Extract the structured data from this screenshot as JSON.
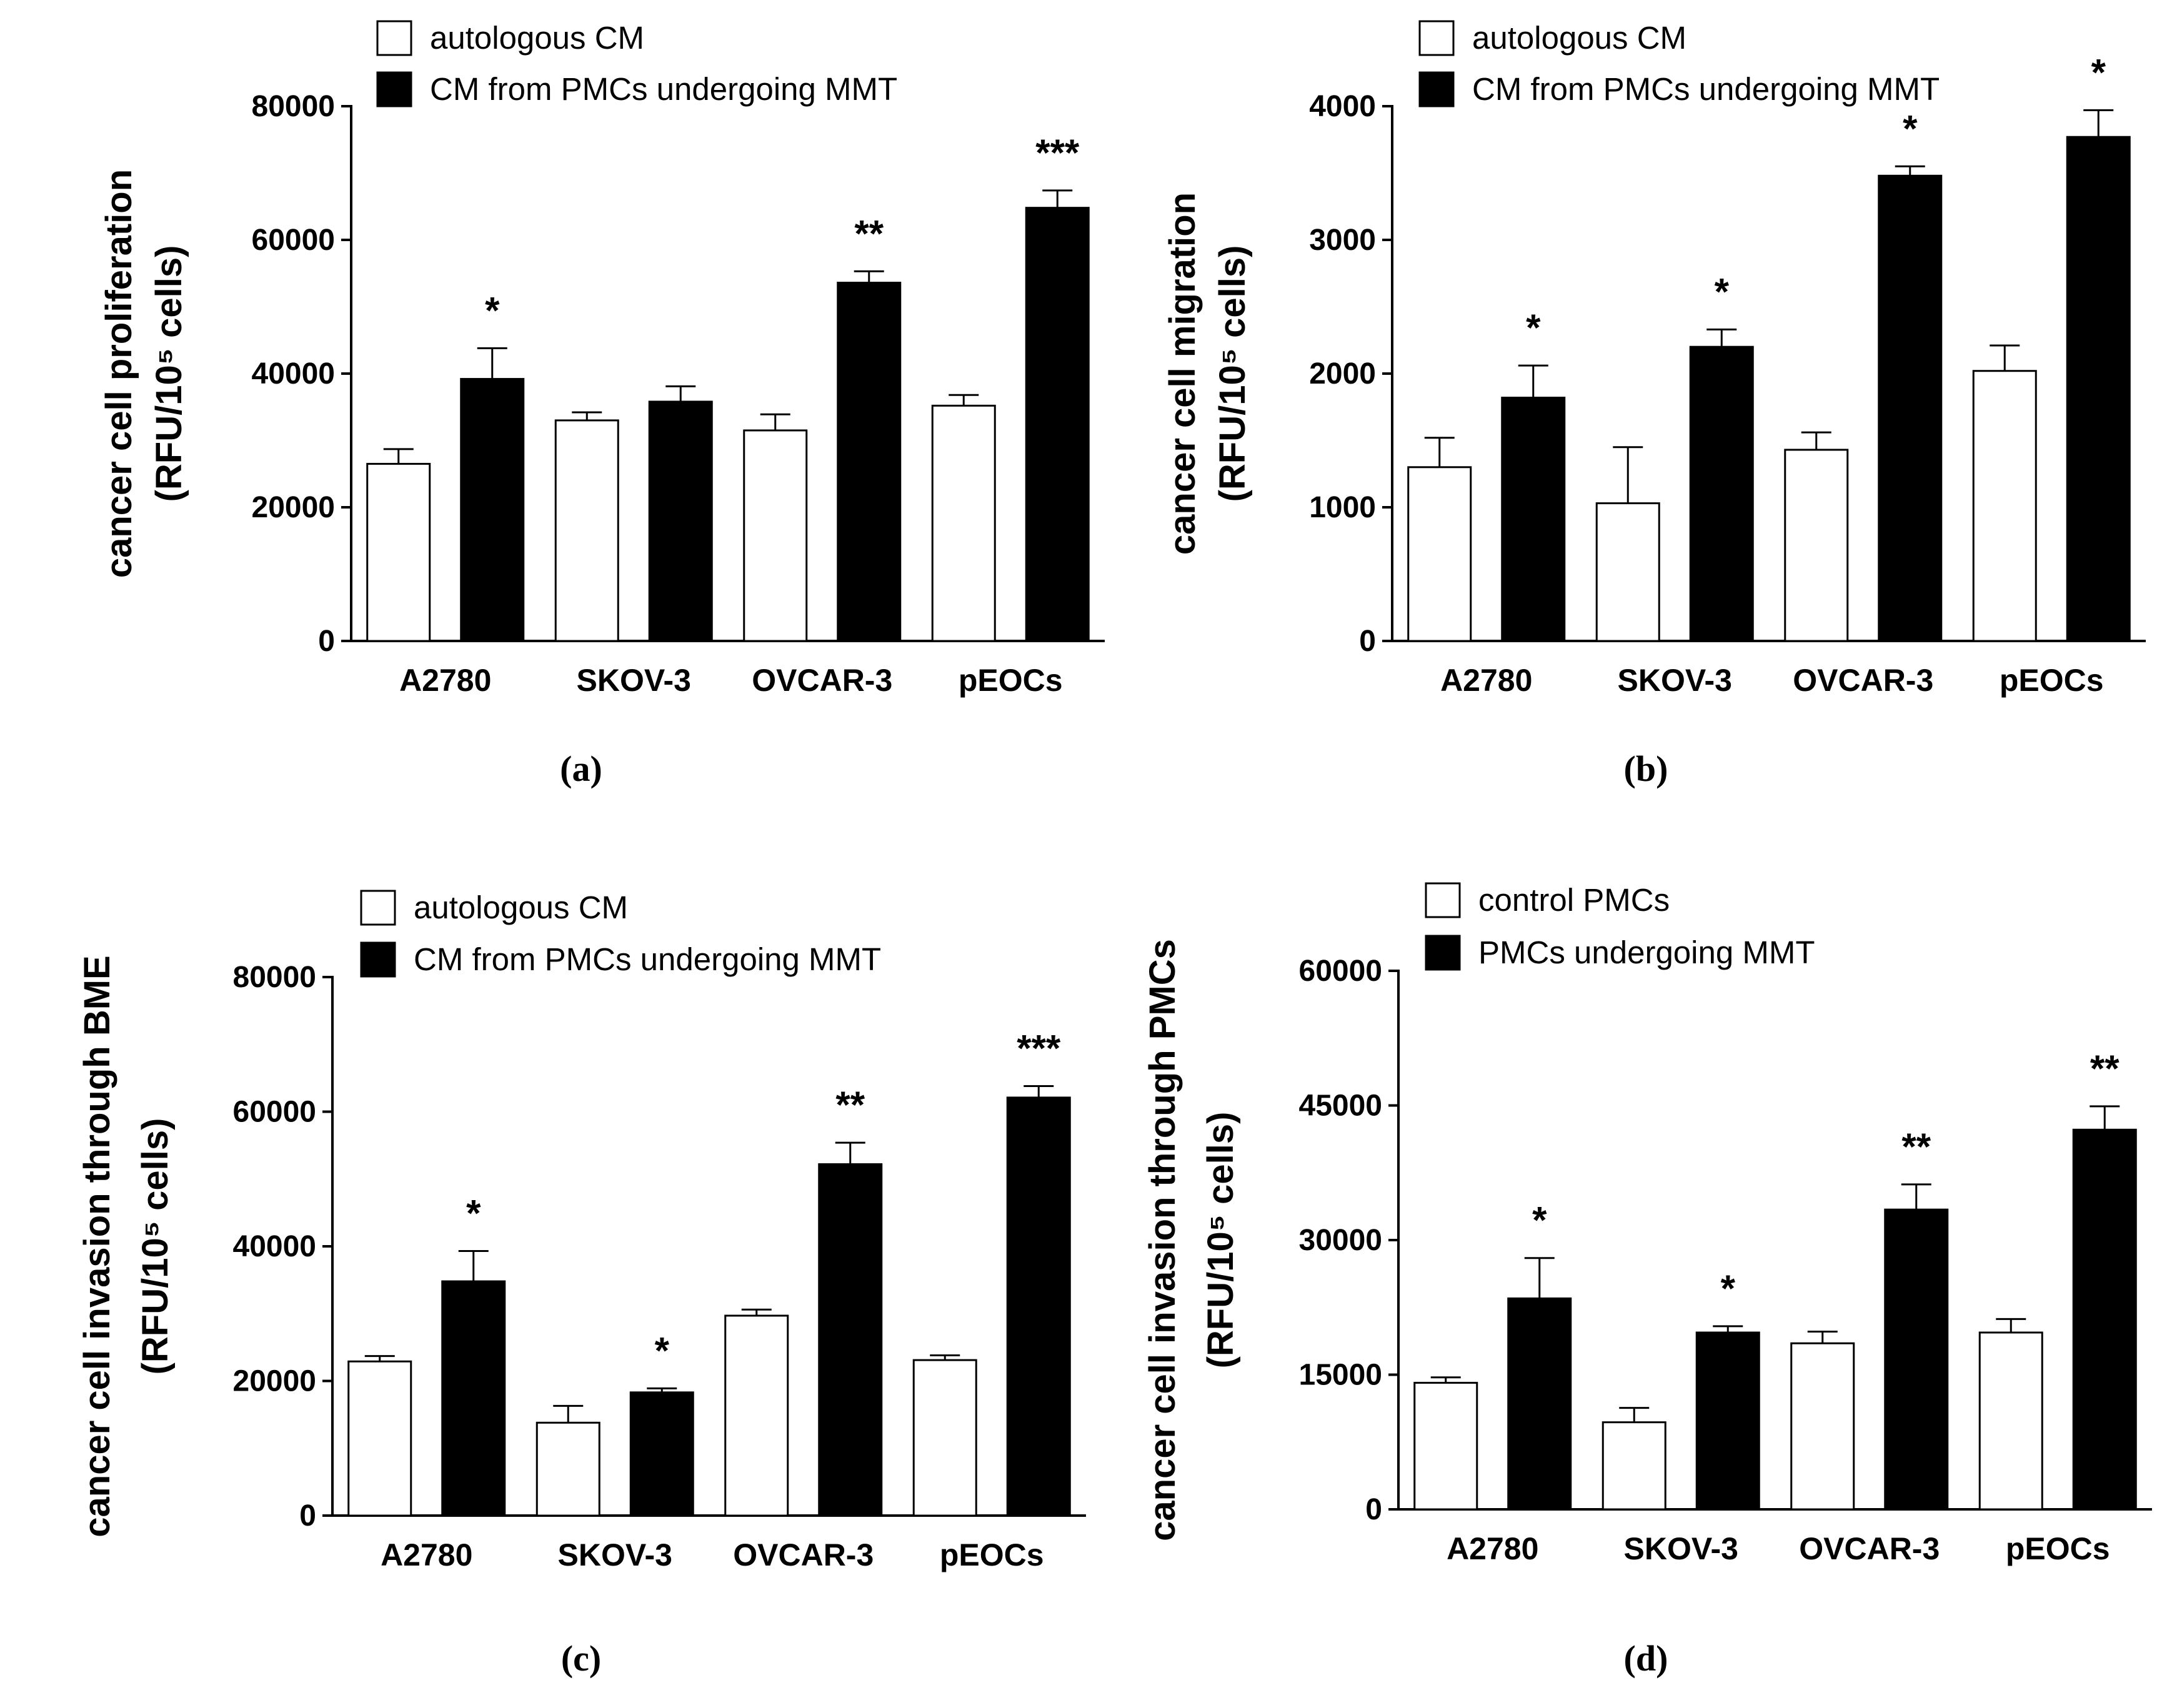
{
  "colors": {
    "control": "#ffffff",
    "treated": "#000000",
    "outline": "#000000"
  },
  "chart_data": [
    {
      "type": "bar",
      "panel_label": "(a)",
      "categories": [
        "A2780",
        "SKOV-3",
        "OVCAR-3",
        "pEOCs"
      ],
      "ylabel_line1": "cancer cell proliferation",
      "ylabel_line2": "(RFU/10⁵ cells)",
      "ylim": [
        0,
        80000
      ],
      "yticks": [
        0,
        20000,
        40000,
        60000,
        80000
      ],
      "legend": [
        "autologous CM",
        "CM from PMCs undergoing MMT"
      ],
      "series": [
        {
          "name": "autologous CM",
          "values": [
            26500,
            33000,
            31500,
            35200
          ],
          "errors": [
            2200,
            1200,
            2400,
            1600
          ]
        },
        {
          "name": "CM from PMCs undergoing MMT",
          "values": [
            39200,
            35800,
            53600,
            64800
          ],
          "errors": [
            4600,
            2300,
            1700,
            2600
          ]
        }
      ],
      "significance": [
        "*",
        "",
        "**",
        "***"
      ]
    },
    {
      "type": "bar",
      "panel_label": "(b)",
      "categories": [
        "A2780",
        "SKOV-3",
        "OVCAR-3",
        "pEOCs"
      ],
      "ylabel_line1": "cancer cell migration",
      "ylabel_line2": "(RFU/10⁵ cells)",
      "ylim": [
        0,
        4000
      ],
      "yticks": [
        0,
        1000,
        2000,
        3000,
        4000
      ],
      "legend": [
        "autologous CM",
        "CM from PMCs undergoing MMT"
      ],
      "series": [
        {
          "name": "autologous CM",
          "values": [
            1300,
            1030,
            1430,
            2020
          ],
          "errors": [
            220,
            420,
            130,
            190
          ]
        },
        {
          "name": "CM from PMCs undergoing MMT",
          "values": [
            1820,
            2200,
            3480,
            3770
          ],
          "errors": [
            240,
            130,
            70,
            200
          ]
        }
      ],
      "significance": [
        "*",
        "*",
        "*",
        "*"
      ]
    },
    {
      "type": "bar",
      "panel_label": "(c)",
      "categories": [
        "A2780",
        "SKOV-3",
        "OVCAR-3",
        "pEOCs"
      ],
      "ylabel_line1": "cancer cell invasion through BME",
      "ylabel_line2": "(RFU/10⁵ cells)",
      "ylim": [
        0,
        80000
      ],
      "yticks": [
        0,
        20000,
        40000,
        60000,
        80000
      ],
      "legend": [
        "autologous CM",
        "CM from PMCs undergoing MMT"
      ],
      "series": [
        {
          "name": "autologous CM",
          "values": [
            22900,
            13800,
            29700,
            23100
          ],
          "errors": [
            800,
            2500,
            900,
            700
          ]
        },
        {
          "name": "CM from PMCs undergoing MMT",
          "values": [
            34800,
            18300,
            52200,
            62100
          ],
          "errors": [
            4500,
            600,
            3200,
            1700
          ]
        }
      ],
      "significance": [
        "*",
        "*",
        "**",
        "***"
      ]
    },
    {
      "type": "bar",
      "panel_label": "(d)",
      "categories": [
        "A2780",
        "SKOV-3",
        "OVCAR-3",
        "pEOCs"
      ],
      "ylabel_line1": "cancer cell invasion through PMCs",
      "ylabel_line2": "(RFU/10⁵ cells)",
      "ylim": [
        0,
        60000
      ],
      "yticks": [
        0,
        15000,
        30000,
        45000,
        60000
      ],
      "legend": [
        "control PMCs",
        "PMCs undergoing MMT"
      ],
      "series": [
        {
          "name": "control PMCs",
          "values": [
            14100,
            9700,
            18500,
            19700
          ],
          "errors": [
            600,
            1600,
            1300,
            1500
          ]
        },
        {
          "name": "PMCs undergoing MMT",
          "values": [
            23500,
            19700,
            33400,
            42300
          ],
          "errors": [
            4500,
            700,
            2800,
            2600
          ]
        }
      ],
      "significance": [
        "*",
        "*",
        "**",
        "**"
      ]
    }
  ]
}
